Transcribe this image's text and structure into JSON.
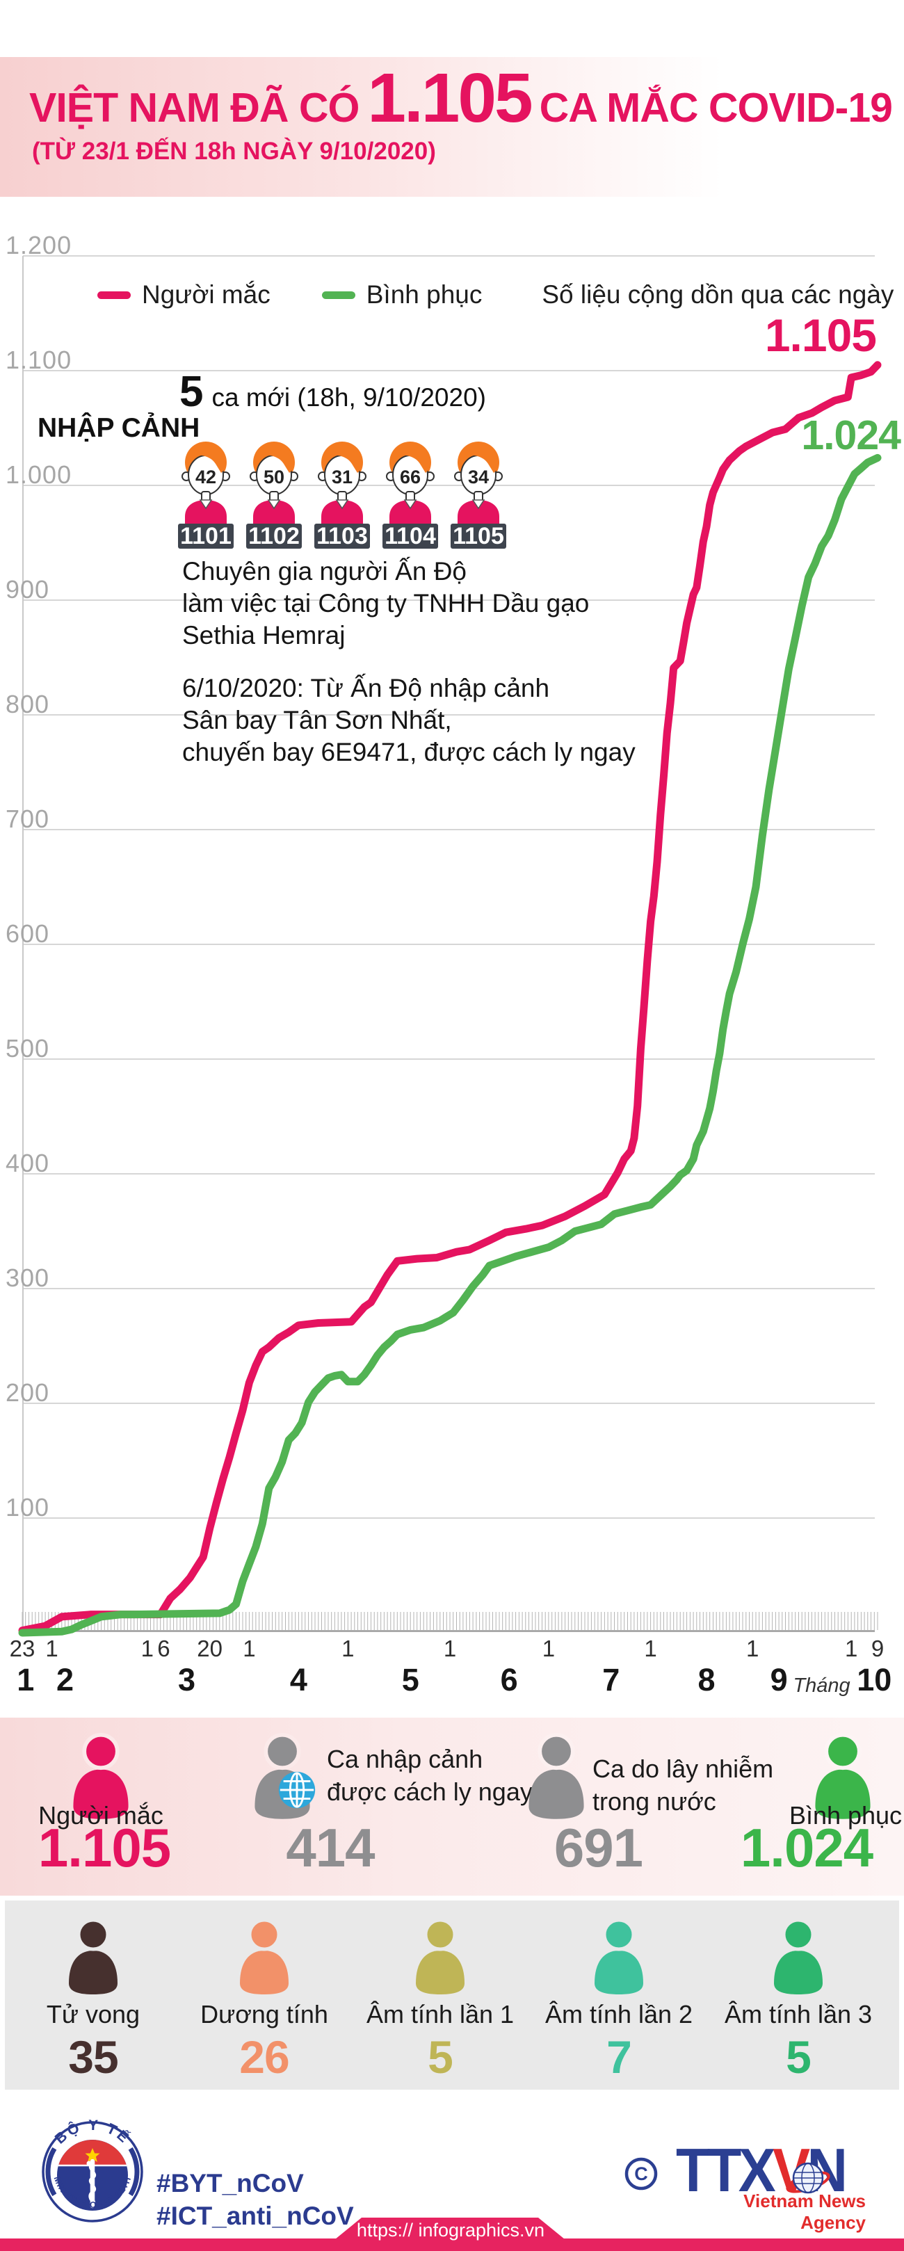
{
  "colors": {
    "accent_pink": "#e5135f",
    "chart_green": "#52b353",
    "stat_green": "#3bb54a",
    "stat_gray": "#8e8e90",
    "navy": "#2b3b8f",
    "agency_blue": "#2b3f92",
    "agency_red": "#e22c2c",
    "footer_bar": "#e72360",
    "death_brown": "#46302e",
    "salmon": "#f29169",
    "olive": "#bfb556",
    "teal": "#3fc29d",
    "neg3_green": "#2db56e",
    "hair_orange": "#f47b20",
    "badge_slate": "#3e444e",
    "globe_blue": "#2da7db"
  },
  "header": {
    "title_prefix": "VIỆT NAM ĐÃ CÓ",
    "title_number": "1.105",
    "title_suffix": "CA MẮC COVID-19",
    "subtitle": "(TỪ 23/1 ĐẾN 18h NGÀY 9/10/2020)"
  },
  "chart": {
    "legend": [
      {
        "label": "Người mắc",
        "color": "#e5135f"
      },
      {
        "label": "Bình phục",
        "color": "#52b353"
      }
    ],
    "legend_note": "Số liệu cộng dồn qua các ngày",
    "end_label_infected": "1.105",
    "end_label_recovered": "1.024",
    "annotations": {
      "new_cases_number": "5",
      "new_cases_text": "ca mới (18h, 9/10/2020)",
      "group_label": "NHẬP CẢNH",
      "persons": [
        {
          "age": "42",
          "case_id": "1101"
        },
        {
          "age": "50",
          "case_id": "1102"
        },
        {
          "age": "31",
          "case_id": "1103"
        },
        {
          "age": "66",
          "case_id": "1104"
        },
        {
          "age": "34",
          "case_id": "1105"
        }
      ],
      "note1_lines": [
        "Chuyên gia người Ấn Độ",
        "làm việc tại Công ty TNHH Dầu gạo",
        "Sethia Hemraj"
      ],
      "note2_lines": [
        "6/10/2020: Từ Ấn Độ nhập cảnh",
        "Sân bay Tân Sơn Nhất,",
        "chuyến bay 6E9471, được cách ly ngay"
      ]
    },
    "y_ticks": [
      {
        "label": "1.200",
        "value": 1200
      },
      {
        "label": "1.100",
        "value": 1100
      },
      {
        "label": "1.000",
        "value": 1000
      },
      {
        "label": "900",
        "value": 900
      },
      {
        "label": "800",
        "value": 800
      },
      {
        "label": "700",
        "value": 700
      },
      {
        "label": "600",
        "value": 600
      },
      {
        "label": "500",
        "value": 500
      },
      {
        "label": "400",
        "value": 400
      },
      {
        "label": "300",
        "value": 300
      },
      {
        "label": "200",
        "value": 200
      },
      {
        "label": "100",
        "value": 100
      }
    ],
    "x_ticks": [
      {
        "label": "23",
        "day": 0
      },
      {
        "label": "1",
        "day": 9
      },
      {
        "label": "1",
        "day": 38
      },
      {
        "label": "6",
        "day": 43
      },
      {
        "label": "20",
        "day": 57
      },
      {
        "label": "1",
        "day": 69
      },
      {
        "label": "1",
        "day": 99
      },
      {
        "label": "1",
        "day": 130
      },
      {
        "label": "1",
        "day": 160
      },
      {
        "label": "1",
        "day": 191
      },
      {
        "label": "1",
        "day": 222
      },
      {
        "label": "1",
        "day": 252
      },
      {
        "label": "9",
        "day": 260
      }
    ],
    "month_ticks": [
      {
        "label": "1",
        "day": 1
      },
      {
        "label": "2",
        "day": 13
      },
      {
        "label": "3",
        "day": 50
      },
      {
        "label": "4",
        "day": 84
      },
      {
        "label": "5",
        "day": 118
      },
      {
        "label": "6",
        "day": 148
      },
      {
        "label": "7",
        "day": 179
      },
      {
        "label": "8",
        "day": 208
      },
      {
        "label": "9",
        "day": 230
      },
      {
        "label": "Tháng",
        "day": 243,
        "small": true
      },
      {
        "label": "10",
        "day": 259
      }
    ]
  },
  "chart_data": {
    "type": "line",
    "title": "Số liệu cộng dồn qua các ngày",
    "x_unit": "days since 23/1/2020 (x axis spans 23/1 to 9/10/2020)",
    "ylim": [
      0,
      1200
    ],
    "grid": true,
    "legend_position": "top",
    "series": [
      {
        "name": "Người mắc",
        "color": "#e5135f",
        "final_value": 1105,
        "points": [
          [
            0,
            2
          ],
          [
            7,
            6
          ],
          [
            12,
            14
          ],
          [
            21,
            16
          ],
          [
            42,
            16
          ],
          [
            45,
            30
          ],
          [
            48,
            38
          ],
          [
            51,
            48
          ],
          [
            53,
            57
          ],
          [
            55,
            66
          ],
          [
            57,
            91
          ],
          [
            59,
            113
          ],
          [
            61,
            134
          ],
          [
            63,
            153
          ],
          [
            65,
            174
          ],
          [
            67,
            194
          ],
          [
            69,
            218
          ],
          [
            71,
            233
          ],
          [
            73,
            245
          ],
          [
            75,
            249
          ],
          [
            78,
            257
          ],
          [
            81,
            262
          ],
          [
            84,
            268
          ],
          [
            90,
            270
          ],
          [
            100,
            271
          ],
          [
            104,
            284
          ],
          [
            106,
            288
          ],
          [
            111,
            312
          ],
          [
            114,
            324
          ],
          [
            120,
            326
          ],
          [
            126,
            327
          ],
          [
            132,
            332
          ],
          [
            136,
            334
          ],
          [
            142,
            342
          ],
          [
            147,
            349
          ],
          [
            153,
            352
          ],
          [
            158,
            355
          ],
          [
            165,
            363
          ],
          [
            171,
            372
          ],
          [
            177,
            382
          ],
          [
            181,
            401
          ],
          [
            183,
            413
          ],
          [
            185,
            420
          ],
          [
            186,
            431
          ],
          [
            187,
            459
          ],
          [
            188,
            509
          ],
          [
            189,
            546
          ],
          [
            190,
            586
          ],
          [
            191,
            620
          ],
          [
            192,
            642
          ],
          [
            193,
            672
          ],
          [
            194,
            713
          ],
          [
            195,
            747
          ],
          [
            196,
            784
          ],
          [
            197,
            810
          ],
          [
            198,
            841
          ],
          [
            200,
            847
          ],
          [
            201,
            863
          ],
          [
            202,
            880
          ],
          [
            204,
            905
          ],
          [
            205,
            911
          ],
          [
            206,
            930
          ],
          [
            207,
            951
          ],
          [
            208,
            964
          ],
          [
            209,
            983
          ],
          [
            210,
            994
          ],
          [
            212,
            1007
          ],
          [
            213,
            1014
          ],
          [
            215,
            1022
          ],
          [
            218,
            1030
          ],
          [
            220,
            1034
          ],
          [
            224,
            1040
          ],
          [
            228,
            1046
          ],
          [
            232,
            1049
          ],
          [
            236,
            1059
          ],
          [
            240,
            1063
          ],
          [
            243,
            1068
          ],
          [
            247,
            1074
          ],
          [
            251,
            1077
          ],
          [
            252,
            1094
          ],
          [
            255,
            1096
          ],
          [
            258,
            1099
          ],
          [
            260,
            1105
          ]
        ]
      },
      {
        "name": "Bình phục",
        "color": "#52b353",
        "final_value": 1024,
        "points": [
          [
            0,
            0
          ],
          [
            12,
            1
          ],
          [
            15,
            3
          ],
          [
            18,
            7
          ],
          [
            24,
            14
          ],
          [
            30,
            16
          ],
          [
            34,
            16
          ],
          [
            60,
            17
          ],
          [
            63,
            20
          ],
          [
            65,
            25
          ],
          [
            67,
            45
          ],
          [
            69,
            60
          ],
          [
            71,
            75
          ],
          [
            73,
            95
          ],
          [
            75,
            126
          ],
          [
            77,
            136
          ],
          [
            79,
            149
          ],
          [
            81,
            168
          ],
          [
            83,
            174
          ],
          [
            85,
            183
          ],
          [
            87,
            201
          ],
          [
            89,
            210
          ],
          [
            91,
            216
          ],
          [
            93,
            222
          ],
          [
            95,
            224
          ],
          [
            97,
            225
          ],
          [
            99,
            219
          ],
          [
            102,
            219
          ],
          [
            104,
            225
          ],
          [
            106,
            233
          ],
          [
            108,
            242
          ],
          [
            110,
            249
          ],
          [
            112,
            254
          ],
          [
            114,
            260
          ],
          [
            118,
            264
          ],
          [
            122,
            266
          ],
          [
            127,
            272
          ],
          [
            131,
            279
          ],
          [
            134,
            290
          ],
          [
            137,
            302
          ],
          [
            140,
            312
          ],
          [
            142,
            320
          ],
          [
            146,
            324
          ],
          [
            150,
            328
          ],
          [
            155,
            332
          ],
          [
            160,
            336
          ],
          [
            164,
            342
          ],
          [
            168,
            350
          ],
          [
            172,
            353
          ],
          [
            176,
            356
          ],
          [
            180,
            365
          ],
          [
            184,
            368
          ],
          [
            188,
            371
          ],
          [
            191,
            373
          ],
          [
            194,
            381
          ],
          [
            197,
            389
          ],
          [
            199,
            395
          ],
          [
            200,
            399
          ],
          [
            202,
            403
          ],
          [
            204,
            413
          ],
          [
            205,
            425
          ],
          [
            207,
            437
          ],
          [
            209,
            457
          ],
          [
            210,
            472
          ],
          [
            211,
            490
          ],
          [
            212,
            505
          ],
          [
            213,
            526
          ],
          [
            214,
            542
          ],
          [
            215,
            557
          ],
          [
            217,
            576
          ],
          [
            219,
            600
          ],
          [
            221,
            622
          ],
          [
            223,
            650
          ],
          [
            225,
            695
          ],
          [
            227,
            735
          ],
          [
            229,
            770
          ],
          [
            231,
            805
          ],
          [
            233,
            840
          ],
          [
            235,
            867
          ],
          [
            237,
            895
          ],
          [
            239,
            920
          ],
          [
            241,
            932
          ],
          [
            243,
            947
          ],
          [
            245,
            956
          ],
          [
            247,
            970
          ],
          [
            249,
            988
          ],
          [
            251,
            999
          ],
          [
            253,
            1010
          ],
          [
            255,
            1015
          ],
          [
            257,
            1020
          ],
          [
            260,
            1024
          ]
        ]
      }
    ]
  },
  "stats_primary": [
    {
      "label": "Người mắc",
      "value": "1.105",
      "color": "#e5135f"
    },
    {
      "label_line1": "Ca nhập cảnh",
      "label_line2": "được cách ly ngay",
      "value": "414",
      "color": "#8e8e90"
    },
    {
      "label_line1": "Ca do lây nhiễm",
      "label_line2": "trong nước",
      "value": "691",
      "color": "#8e8e90"
    },
    {
      "label": "Bình phục",
      "value": "1.024",
      "color": "#3bb54a"
    }
  ],
  "stats_secondary": [
    {
      "label": "Tử vong",
      "value": "35",
      "color": "#46302e"
    },
    {
      "label": "Dương tính",
      "value": "26",
      "color": "#f29169"
    },
    {
      "label": "Âm tính lần 1",
      "value": "5",
      "color": "#bfb556"
    },
    {
      "label": "Âm tính lần 2",
      "value": "7",
      "color": "#3fc29d"
    },
    {
      "label": "Âm tính lần 3",
      "value": "5",
      "color": "#2db56e"
    }
  ],
  "footer": {
    "hashtag1": "#BYT_nCoV",
    "hashtag2": "#ICT_anti_nCoV",
    "moh_top": "BỘ Y TẾ",
    "moh_bottom": "MINISTRY OF HEALTH",
    "copyright": "C",
    "agency_ttx": "TTX",
    "agency_v": "V",
    "agency_n": "N",
    "agency_subtitle": "Vietnam News Agency",
    "url": "https:// infographics.vn"
  }
}
